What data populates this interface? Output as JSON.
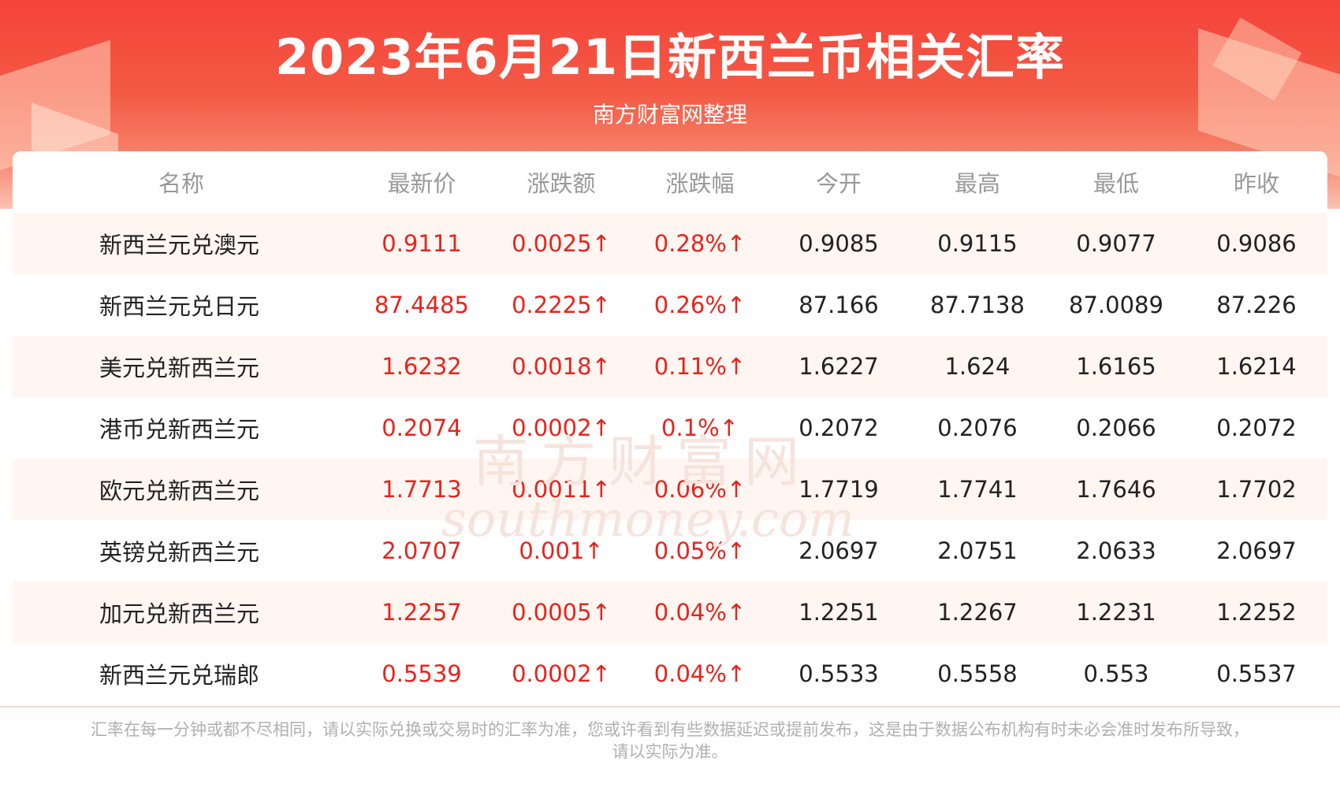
{
  "header": {
    "title": "2023年6月21日新西兰币相关汇率",
    "subtitle": "南方财富网整理"
  },
  "table": {
    "columns": [
      "名称",
      "最新价",
      "涨跌额",
      "涨跌幅",
      "今开",
      "最高",
      "最低",
      "昨收"
    ],
    "rows": [
      [
        "新西兰元兑澳元",
        "0.9111",
        "0.0025↑",
        "0.28%↑",
        "0.9085",
        "0.9115",
        "0.9077",
        "0.9086"
      ],
      [
        "新西兰元兑日元",
        "87.4485",
        "0.2225↑",
        "0.26%↑",
        "87.166",
        "87.7138",
        "87.0089",
        "87.226"
      ],
      [
        "美元兑新西兰元",
        "1.6232",
        "0.0018↑",
        "0.11%↑",
        "1.6227",
        "1.624",
        "1.6165",
        "1.6214"
      ],
      [
        "港币兑新西兰元",
        "0.2074",
        "0.0002↑",
        "0.1%↑",
        "0.2072",
        "0.2076",
        "0.2066",
        "0.2072"
      ],
      [
        "欧元兑新西兰元",
        "1.7713",
        "0.0011↑",
        "0.06%↑",
        "1.7719",
        "1.7741",
        "1.7646",
        "1.7702"
      ],
      [
        "英镑兑新西兰元",
        "2.0707",
        "0.001↑",
        "0.05%↑",
        "2.0697",
        "2.0751",
        "2.0633",
        "2.0697"
      ],
      [
        "加元兑新西兰元",
        "1.2257",
        "0.0005↑",
        "0.04%↑",
        "1.2251",
        "1.2267",
        "1.2231",
        "1.2252"
      ],
      [
        "新西兰元兑瑞郎",
        "0.5539",
        "0.0002↑",
        "0.04%↑",
        "0.5533",
        "0.5558",
        "0.553",
        "0.5537"
      ]
    ]
  },
  "watermark": {
    "cn": "南方财富网",
    "en": "southmoney.com"
  },
  "footnote": {
    "line1": "汇率在每一分钟或都不尽相同，请以实际兑换或交易时的汇率为准，您或许看到有些数据延迟或提前发布，这是由于数据公布机构有时未必会准时发布所导致，",
    "line2": "请以实际为准。"
  },
  "colors": {
    "up": "#e8231c",
    "banner": "#f5433a",
    "row_alt": "#fff6f2"
  }
}
